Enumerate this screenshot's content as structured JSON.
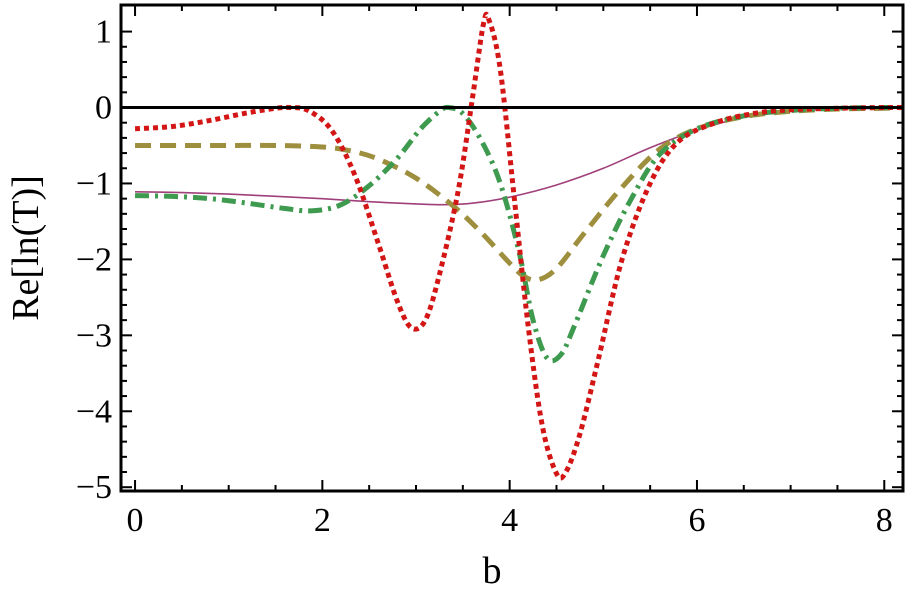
{
  "chart_data": {
    "type": "line",
    "title": "",
    "xlabel": "b",
    "ylabel": "Re[ln(T)]",
    "xlim": [
      -0.15,
      8.2
    ],
    "ylim": [
      -5.05,
      1.35
    ],
    "x_ticks": [
      0,
      2,
      4,
      6,
      8
    ],
    "x_tick_labels": [
      "0",
      "2",
      "4",
      "6",
      "8"
    ],
    "y_ticks": [
      1,
      0,
      -1,
      -2,
      -3,
      -4,
      -5
    ],
    "y_tick_labels": [
      "1",
      "0",
      "−1",
      "−2",
      "−3",
      "−4",
      "−5"
    ],
    "grid": false,
    "legend": "none",
    "reference_line": {
      "y": 0,
      "color": "#000000"
    },
    "series": [
      {
        "style": "solid",
        "color": "#a0407a",
        "points": [
          [
            0,
            -1.11
          ],
          [
            0.5,
            -1.12
          ],
          [
            1.0,
            -1.14
          ],
          [
            1.5,
            -1.17
          ],
          [
            2.0,
            -1.2
          ],
          [
            2.5,
            -1.24
          ],
          [
            3.0,
            -1.27
          ],
          [
            3.3,
            -1.28
          ],
          [
            3.6,
            -1.26
          ],
          [
            4.0,
            -1.18
          ],
          [
            4.5,
            -1.02
          ],
          [
            5.0,
            -0.8
          ],
          [
            5.5,
            -0.53
          ],
          [
            6.0,
            -0.3
          ],
          [
            6.5,
            -0.13
          ],
          [
            7.0,
            -0.05
          ],
          [
            7.5,
            -0.02
          ],
          [
            8.0,
            -0.01
          ],
          [
            8.2,
            0
          ]
        ]
      },
      {
        "style": "dashed",
        "color": "#9e8f3e",
        "points": [
          [
            0,
            -0.5
          ],
          [
            0.5,
            -0.5
          ],
          [
            1.0,
            -0.5
          ],
          [
            1.5,
            -0.5
          ],
          [
            2.0,
            -0.52
          ],
          [
            2.3,
            -0.57
          ],
          [
            2.6,
            -0.68
          ],
          [
            3.0,
            -0.93
          ],
          [
            3.4,
            -1.3
          ],
          [
            3.7,
            -1.65
          ],
          [
            4.0,
            -2.05
          ],
          [
            4.15,
            -2.22
          ],
          [
            4.3,
            -2.27
          ],
          [
            4.5,
            -2.12
          ],
          [
            4.8,
            -1.65
          ],
          [
            5.2,
            -1.05
          ],
          [
            5.6,
            -0.55
          ],
          [
            6.0,
            -0.28
          ],
          [
            6.5,
            -0.12
          ],
          [
            7.0,
            -0.05
          ],
          [
            7.5,
            -0.02
          ],
          [
            8.0,
            -0.01
          ],
          [
            8.2,
            0
          ]
        ]
      },
      {
        "style": "dash-dot",
        "color": "#3d9a4e",
        "points": [
          [
            0,
            -1.16
          ],
          [
            0.4,
            -1.17
          ],
          [
            0.8,
            -1.2
          ],
          [
            1.2,
            -1.26
          ],
          [
            1.6,
            -1.33
          ],
          [
            1.9,
            -1.36
          ],
          [
            2.2,
            -1.28
          ],
          [
            2.5,
            -1.03
          ],
          [
            2.8,
            -0.67
          ],
          [
            3.05,
            -0.28
          ],
          [
            3.25,
            -0.05
          ],
          [
            3.35,
            0
          ],
          [
            3.5,
            -0.08
          ],
          [
            3.7,
            -0.44
          ],
          [
            3.9,
            -1.0
          ],
          [
            4.1,
            -1.9
          ],
          [
            4.25,
            -2.8
          ],
          [
            4.4,
            -3.3
          ],
          [
            4.55,
            -3.25
          ],
          [
            4.7,
            -2.85
          ],
          [
            5.0,
            -1.95
          ],
          [
            5.3,
            -1.2
          ],
          [
            5.6,
            -0.62
          ],
          [
            6.0,
            -0.28
          ],
          [
            6.5,
            -0.11
          ],
          [
            7.0,
            -0.04
          ],
          [
            7.5,
            -0.01
          ],
          [
            8.0,
            0
          ],
          [
            8.2,
            0
          ]
        ]
      },
      {
        "style": "dotted",
        "color": "#d41515",
        "points": [
          [
            0,
            -0.28
          ],
          [
            0.4,
            -0.25
          ],
          [
            0.8,
            -0.17
          ],
          [
            1.2,
            -0.07
          ],
          [
            1.5,
            -0.01
          ],
          [
            1.65,
            0
          ],
          [
            1.85,
            -0.04
          ],
          [
            2.1,
            -0.3
          ],
          [
            2.35,
            -0.9
          ],
          [
            2.6,
            -1.8
          ],
          [
            2.8,
            -2.55
          ],
          [
            2.95,
            -2.9
          ],
          [
            3.1,
            -2.8
          ],
          [
            3.25,
            -2.2
          ],
          [
            3.45,
            -1.1
          ],
          [
            3.6,
            0.1
          ],
          [
            3.72,
            1.1
          ],
          [
            3.78,
            1.15
          ],
          [
            3.9,
            0.5
          ],
          [
            4.05,
            -1.2
          ],
          [
            4.2,
            -2.9
          ],
          [
            4.35,
            -4.2
          ],
          [
            4.5,
            -4.82
          ],
          [
            4.6,
            -4.8
          ],
          [
            4.75,
            -4.3
          ],
          [
            4.95,
            -3.3
          ],
          [
            5.2,
            -2.0
          ],
          [
            5.5,
            -1.0
          ],
          [
            5.8,
            -0.45
          ],
          [
            6.2,
            -0.2
          ],
          [
            6.6,
            -0.08
          ],
          [
            7.0,
            -0.03
          ],
          [
            7.5,
            -0.01
          ],
          [
            8.0,
            0
          ],
          [
            8.2,
            0
          ]
        ]
      }
    ]
  }
}
